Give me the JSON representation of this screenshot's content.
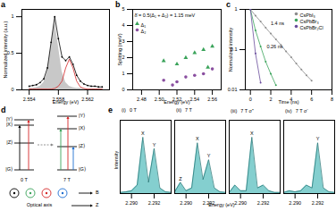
{
  "chart_data": [
    {
      "type": "line",
      "title": "a",
      "x_label": "Energy (eV)",
      "y_label": "Normalized intensity (a.u.)",
      "x": [
        2.554,
        2.5545,
        2.555,
        2.5555,
        2.556,
        2.5565,
        2.557,
        2.5575,
        2.558,
        2.5585,
        2.559,
        2.5595,
        2.56,
        2.5605,
        2.561,
        2.5615,
        2.562,
        2.5625,
        2.563,
        2.5635,
        2.564
      ],
      "xlim": [
        2.553,
        2.565
      ],
      "xticks": [
        2.554,
        2.558,
        2.562
      ],
      "ylim": [
        0,
        1.1
      ],
      "yticks": [
        0,
        0.5,
        1
      ],
      "series": [
        {
          "type": "area",
          "color": "#9a9a9a",
          "values": [
            0.02,
            0.02,
            0.03,
            0.05,
            0.1,
            0.25,
            0.6,
            0.95,
            0.6,
            0.25,
            0.1,
            0.05,
            0.03,
            0.02,
            0.02,
            0.01,
            0.01,
            0.01,
            0.01,
            0.01,
            0.01
          ]
        },
        {
          "type": "line",
          "color": "#d62728",
          "values": [
            0.01,
            0.01,
            0.01,
            0.01,
            0.01,
            0.01,
            0.01,
            0.02,
            0.05,
            0.12,
            0.3,
            0.42,
            0.3,
            0.12,
            0.04,
            0.02,
            0.01,
            0.01,
            0.01,
            0.01,
            0.01
          ]
        },
        {
          "type": "line",
          "color": "#000000",
          "marker": "circle",
          "values": [
            0.05,
            0.06,
            0.07,
            0.1,
            0.15,
            0.3,
            0.65,
            1,
            0.7,
            0.45,
            0.4,
            0.45,
            0.35,
            0.2,
            0.12,
            0.08,
            0.06,
            0.05,
            0.05,
            0.04,
            0.04
          ]
        }
      ]
    },
    {
      "type": "scatter",
      "title": "b",
      "x_label": "Energy (eV)",
      "y_label": "Splitting (meV)",
      "xlim": [
        2.47,
        2.57
      ],
      "xticks": [
        2.48,
        {
          "value": 2.5,
          "label": "2.50"
        },
        2.52,
        2.54,
        2.56
      ],
      "ylim": [
        0,
        5
      ],
      "yticks": [
        0,
        1,
        2,
        3,
        4,
        5
      ],
      "legend": "top-left",
      "annotations": [
        {
          "text": "δ̄ = 0.5(Δ₁ + Δ₂) = 1.15 meV",
          "x": 2.472,
          "y": 4.6
        }
      ],
      "series": [
        {
          "name": "Δ₁",
          "color": "#3aa35a",
          "marker": "triangle",
          "x": [
            2.505,
            2.52,
            2.53,
            2.54,
            2.55,
            2.555,
            2.56
          ],
          "values": [
            1.8,
            1.6,
            2.0,
            2.3,
            2.5,
            1.4,
            2.7
          ]
        },
        {
          "name": "Δ₂",
          "color": "#8a4fa0",
          "marker": "circle",
          "x": [
            2.505,
            2.515,
            2.52,
            2.53,
            2.54,
            2.55,
            2.56
          ],
          "values": [
            0.6,
            0.3,
            0.5,
            0.8,
            0.9,
            1.0,
            1.3
          ]
        }
      ]
    },
    {
      "type": "line",
      "title": "c",
      "x_label": "Time (ns)",
      "y_label": "Normalized intensity",
      "log": "y",
      "x": [
        0,
        0.5,
        1,
        1.5,
        2,
        2.5,
        3,
        3.5,
        4,
        4.5,
        5,
        5.5,
        6
      ],
      "xlim": [
        -0.5,
        8
      ],
      "xticks": [
        0,
        2,
        4,
        6,
        8
      ],
      "ylim": [
        0.01,
        1
      ],
      "yticks": [
        0.01,
        0.1,
        1
      ],
      "legend": "top-right",
      "annotations": [
        {
          "text": "0.26 ns",
          "x": 1.6,
          "y": 0.12
        },
        {
          "text": "1.4 ns",
          "x": 2,
          "y": 0.45
        }
      ],
      "series": [
        {
          "name": "CsPbI₃",
          "color": "#8c8c8c",
          "marker": "circle",
          "values": [
            1,
            0.7,
            0.5,
            0.35,
            0.25,
            0.18,
            0.13,
            0.09,
            0.065,
            0.045,
            0.032,
            0.023,
            0.017
          ]
        },
        {
          "name": "CsPbBr₃",
          "color": "#3aa35a",
          "marker": "circle",
          "values": [
            1,
            0.3,
            0.12,
            0.05,
            0.025,
            0.013,
            null,
            null,
            null,
            null,
            null,
            null,
            null
          ]
        },
        {
          "name": "CsPbBr₂Cl",
          "color": "#6a4c9c",
          "marker": "circle",
          "values": [
            1,
            0.08,
            0.015,
            null,
            null,
            null,
            null,
            null,
            null,
            null,
            null,
            null,
            null
          ]
        }
      ]
    },
    {
      "type": "area",
      "title": "(i)",
      "subtitle": "0 T",
      "tick_labels": "x",
      "color": "#5bbfbf",
      "x": [
        2.289,
        2.2895,
        2.29,
        2.2905,
        2.291,
        2.2915,
        2.292,
        2.2925,
        2.293,
        2.2935
      ],
      "values": [
        0.02,
        0.03,
        0.05,
        0.15,
        1,
        0.2,
        0.8,
        0.1,
        0.03,
        0.02
      ],
      "xlim": [
        2.289,
        2.2935
      ],
      "xticks": [
        {
          "value": 2.29,
          "label": "2.290"
        },
        2.292
      ],
      "ylim": [
        0,
        1.3
      ],
      "annotations": [
        {
          "text": "X",
          "x": 2.291,
          "y": 1
        },
        {
          "text": "Y",
          "x": 2.292,
          "y": 0.8
        }
      ]
    },
    {
      "type": "area",
      "title": "(ii)",
      "subtitle": "7 T",
      "tick_labels": "x",
      "color": "#5bbfbf",
      "x": [
        2.289,
        2.2895,
        2.29,
        2.2905,
        2.291,
        2.2915,
        2.292,
        2.2925,
        2.293,
        2.2935
      ],
      "values": [
        0.03,
        0.2,
        0.05,
        0.1,
        0.9,
        0.25,
        0.6,
        0.1,
        0.03,
        0.02
      ],
      "xlim": [
        2.289,
        2.2935
      ],
      "xticks": [
        {
          "value": 2.29,
          "label": "2.290"
        },
        2.292
      ],
      "ylim": [
        0,
        1.3
      ],
      "annotations": [
        {
          "text": "Z",
          "x": 2.2895,
          "y": 0.2
        },
        {
          "text": "X",
          "x": 2.291,
          "y": 0.9
        },
        {
          "text": "Y",
          "x": 2.292,
          "y": 0.6
        }
      ]
    },
    {
      "type": "area",
      "title": "(iii)",
      "subtitle": "7 T σ⁺",
      "tick_labels": "x",
      "color": "#5bbfbf",
      "x": [
        2.289,
        2.2895,
        2.29,
        2.2905,
        2.291,
        2.2915,
        2.292,
        2.2925,
        2.293,
        2.2935
      ],
      "values": [
        0.02,
        0.15,
        0.05,
        0.05,
        1,
        0.1,
        0.15,
        0.05,
        0.02,
        0.02
      ],
      "xlim": [
        2.289,
        2.2935
      ],
      "xticks": [
        {
          "value": 2.29,
          "label": "2.290"
        },
        2.292
      ],
      "ylim": [
        0,
        1.3
      ],
      "annotations": [
        {
          "text": "X",
          "x": 2.291,
          "y": 1
        }
      ]
    },
    {
      "type": "area",
      "title": "(iv)",
      "subtitle": "7 T σ⁻",
      "tick_labels": "x",
      "color": "#5bbfbf",
      "x": [
        2.289,
        2.2895,
        2.29,
        2.2905,
        2.291,
        2.2915,
        2.292,
        2.2925,
        2.293,
        2.2935
      ],
      "values": [
        0.02,
        0.05,
        0.03,
        0.05,
        0.15,
        0.1,
        0.9,
        0.1,
        0.03,
        0.02
      ],
      "xlim": [
        2.289,
        2.2935
      ],
      "xticks": [
        {
          "value": 2.29,
          "label": "2.290"
        },
        2.292
      ],
      "ylim": [
        0,
        1.3
      ],
      "annotations": [
        {
          "text": "Y",
          "x": 2.292,
          "y": 0.9
        }
      ]
    }
  ],
  "panel_e": {
    "title": "e",
    "x_label": "Energy (eV)",
    "y_label": "Intensity"
  },
  "diagram": {
    "title": "d",
    "left": {
      "field": "0 T",
      "levels": [
        "|Y⟩",
        "|X⟩",
        "|Z⟩",
        "|G⟩"
      ]
    },
    "right": {
      "field": "7 T",
      "levels": [
        "|Y⟩",
        "|X⟩",
        "|Z⟩",
        "|G⟩"
      ]
    },
    "field_label": "B",
    "axis_label": "Z",
    "optical_axis": "Optical axis"
  }
}
